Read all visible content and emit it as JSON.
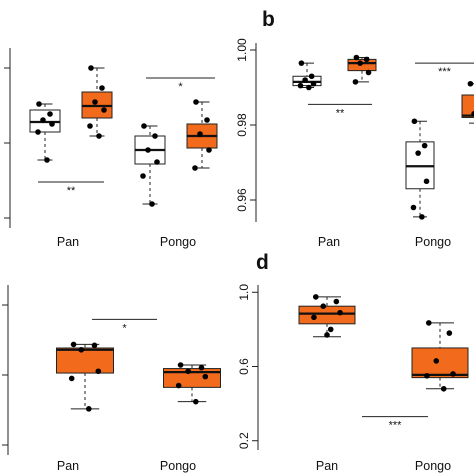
{
  "colors": {
    "treated": "#f26a1b",
    "control": "#ffffff",
    "stroke": "#222222",
    "point": "#000000"
  },
  "chart_data": [
    {
      "panel": "a",
      "letter": "",
      "type": "box",
      "categories": [
        "Pan",
        "Pongo"
      ],
      "y_tick_labels": [],
      "groups": [
        {
          "category": "Pan",
          "fill": "control",
          "whisker_low": 0.972,
          "q1": 0.979,
          "median": 0.9815,
          "q3": 0.9845,
          "whisker_high": 0.986,
          "points": [
            0.986,
            0.9835,
            0.982,
            0.981,
            0.979,
            0.972
          ]
        },
        {
          "category": "Pan",
          "fill": "treated",
          "whisker_low": 0.978,
          "q1": 0.9825,
          "median": 0.9855,
          "q3": 0.989,
          "whisker_high": 0.995,
          "points": [
            0.995,
            0.99,
            0.9865,
            0.9845,
            0.9805,
            0.978
          ]
        },
        {
          "category": "Pongo",
          "fill": "control",
          "whisker_low": 0.961,
          "q1": 0.971,
          "median": 0.9745,
          "q3": 0.978,
          "whisker_high": 0.9805,
          "points": [
            0.9805,
            0.978,
            0.9745,
            0.9715,
            0.968,
            0.961
          ]
        },
        {
          "category": "Pongo",
          "fill": "treated",
          "whisker_low": 0.97,
          "q1": 0.975,
          "median": 0.978,
          "q3": 0.981,
          "whisker_high": 0.9865,
          "points": [
            0.9865,
            0.982,
            0.9785,
            0.9745,
            0.97
          ]
        }
      ],
      "ylim": [
        0.955,
        1.002
      ],
      "significance": [
        {
          "label": "**",
          "y": 0.9665,
          "x_from": 0.5,
          "x_to": 1.5
        },
        {
          "label": "*",
          "y": 0.9925,
          "x_from": 2.2,
          "x_to": 3.2
        }
      ]
    },
    {
      "panel": "b",
      "letter": "b",
      "type": "box",
      "categories": [
        "Pan",
        "Pongo"
      ],
      "y_tick_labels": [
        "0.96",
        "0.98",
        "1.00"
      ],
      "y_ticks": [
        0.96,
        0.98,
        1.0
      ],
      "groups": [
        {
          "category": "Pan",
          "fill": "control",
          "whisker_low": 0.99,
          "q1": 0.9905,
          "median": 0.9915,
          "q3": 0.993,
          "whisker_high": 0.9965,
          "points": [
            0.9965,
            0.993,
            0.992,
            0.991,
            0.9905,
            0.99
          ]
        },
        {
          "category": "Pan",
          "fill": "treated",
          "whisker_low": 0.9915,
          "q1": 0.9945,
          "median": 0.9965,
          "q3": 0.9975,
          "whisker_high": 0.998,
          "points": [
            0.998,
            0.9975,
            0.9965,
            0.994,
            0.9915
          ]
        },
        {
          "category": "Pongo",
          "fill": "control",
          "whisker_low": 0.9555,
          "q1": 0.963,
          "median": 0.969,
          "q3": 0.9755,
          "whisker_high": 0.981,
          "points": [
            0.981,
            0.9745,
            0.9725,
            0.965,
            0.958,
            0.9555
          ]
        },
        {
          "category": "Pongo",
          "fill": "treated",
          "whisker_low": 0.9805,
          "q1": 0.982,
          "median": 0.9825,
          "q3": 0.988,
          "whisker_high": 0.991,
          "points": [
            0.991,
            0.988,
            0.983,
            0.982
          ]
        }
      ],
      "ylim": [
        0.952,
        1.004
      ],
      "significance": [
        {
          "label": "**",
          "y": 0.9855,
          "x_from": 0.5,
          "x_to": 1.5
        },
        {
          "label": "***",
          "y": 0.9965,
          "x_from": 2.0,
          "x_to": 3.0
        }
      ]
    },
    {
      "panel": "c",
      "letter": "",
      "type": "box",
      "categories": [
        "Pan",
        "Pongo"
      ],
      "y_tick_labels": [],
      "groups": [
        {
          "category": "Pan",
          "fill": "treated",
          "whisker_low": 0.33,
          "q1": 0.53,
          "median": 0.66,
          "q3": 0.67,
          "whisker_high": 0.69,
          "points": [
            0.69,
            0.685,
            0.66,
            0.54,
            0.5,
            0.33
          ]
        },
        {
          "category": "Pongo",
          "fill": "treated",
          "whisker_low": 0.37,
          "q1": 0.45,
          "median": 0.535,
          "q3": 0.555,
          "whisker_high": 0.575,
          "points": [
            0.575,
            0.56,
            0.54,
            0.51,
            0.46,
            0.37
          ]
        }
      ],
      "ylim": [
        0.1,
        1.05
      ],
      "significance": [
        {
          "label": "*",
          "y": 0.83,
          "x_from": 0.5,
          "x_to": 1.5
        }
      ]
    },
    {
      "panel": "d",
      "letter": "d",
      "type": "box",
      "categories": [
        "Pan",
        "Pongo"
      ],
      "y_tick_labels": [
        "0.2",
        "0.6",
        "1.0"
      ],
      "y_ticks": [
        0.2,
        0.6,
        1.0
      ],
      "groups": [
        {
          "category": "Pan",
          "fill": "treated",
          "whisker_low": 0.76,
          "q1": 0.83,
          "median": 0.885,
          "q3": 0.925,
          "whisker_high": 0.975,
          "points": [
            0.975,
            0.95,
            0.925,
            0.89,
            0.865,
            0.8,
            0.77
          ]
        },
        {
          "category": "Pongo",
          "fill": "treated",
          "whisker_low": 0.48,
          "q1": 0.54,
          "median": 0.555,
          "q3": 0.7,
          "whisker_high": 0.835,
          "points": [
            0.835,
            0.78,
            0.63,
            0.56,
            0.55,
            0.48
          ]
        }
      ],
      "ylim": [
        0.15,
        1.05
      ],
      "significance": [
        {
          "label": "***",
          "y": 0.33,
          "x_from": 0.7,
          "x_to": 1.7
        }
      ]
    }
  ]
}
